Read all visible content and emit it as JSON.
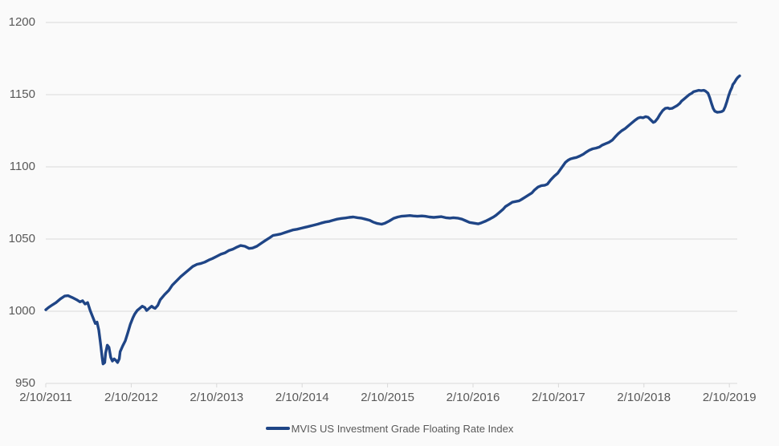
{
  "legend": {
    "label": "MVIS US Investment Grade Floating Rate Index"
  },
  "colors": {
    "line": "#1F4586",
    "grid": "#D9D9D9",
    "axis": "#D9D9D9",
    "text": "#595959",
    "background": "#FAFAFA"
  },
  "chart_data": {
    "type": "line",
    "title": "",
    "xlabel": "",
    "ylabel": "",
    "x_unit": "years since 2/10/2011",
    "x_tick_labels": [
      "2/10/2011",
      "2/10/2012",
      "2/10/2013",
      "2/10/2014",
      "2/10/2015",
      "2/10/2016",
      "2/10/2017",
      "2/10/2018",
      "2/10/2019"
    ],
    "y_ticks": [
      950,
      1000,
      1050,
      1100,
      1150,
      1200
    ],
    "ylim": [
      950,
      1200
    ],
    "xlim": [
      0,
      8.12
    ],
    "grid": true,
    "legend_position": "bottom",
    "series": [
      {
        "name": "MVIS US Investment Grade Floating Rate Index",
        "points": [
          [
            0,
            1001
          ],
          [
            0.03,
            1002.5
          ],
          [
            0.08,
            1004.5
          ],
          [
            0.12,
            1006
          ],
          [
            0.17,
            1008.5
          ],
          [
            0.22,
            1010.5
          ],
          [
            0.26,
            1010.8
          ],
          [
            0.31,
            1009.5
          ],
          [
            0.36,
            1008
          ],
          [
            0.4,
            1006.5
          ],
          [
            0.43,
            1007.3
          ],
          [
            0.46,
            1005
          ],
          [
            0.49,
            1006
          ],
          [
            0.52,
            1000.5
          ],
          [
            0.55,
            996
          ],
          [
            0.58,
            991.5
          ],
          [
            0.6,
            992.5
          ],
          [
            0.62,
            987
          ],
          [
            0.64,
            978
          ],
          [
            0.66,
            968
          ],
          [
            0.67,
            963.5
          ],
          [
            0.69,
            964.5
          ],
          [
            0.7,
            971
          ],
          [
            0.72,
            976.5
          ],
          [
            0.74,
            975
          ],
          [
            0.76,
            968
          ],
          [
            0.78,
            965.5
          ],
          [
            0.8,
            967
          ],
          [
            0.82,
            966
          ],
          [
            0.84,
            964.5
          ],
          [
            0.86,
            967
          ],
          [
            0.87,
            972
          ],
          [
            0.9,
            976
          ],
          [
            0.93,
            979.5
          ],
          [
            0.96,
            985
          ],
          [
            0.99,
            991
          ],
          [
            1.02,
            995.5
          ],
          [
            1.04,
            998
          ],
          [
            1.07,
            1000.5
          ],
          [
            1.1,
            1002
          ],
          [
            1.13,
            1003.5
          ],
          [
            1.16,
            1002.5
          ],
          [
            1.18,
            1000.5
          ],
          [
            1.21,
            1002
          ],
          [
            1.24,
            1003.5
          ],
          [
            1.26,
            1002.5
          ],
          [
            1.28,
            1002
          ],
          [
            1.31,
            1004
          ],
          [
            1.34,
            1008
          ],
          [
            1.39,
            1011.5
          ],
          [
            1.44,
            1014.5
          ],
          [
            1.48,
            1018
          ],
          [
            1.53,
            1021
          ],
          [
            1.58,
            1024
          ],
          [
            1.63,
            1026.5
          ],
          [
            1.67,
            1028.5
          ],
          [
            1.72,
            1031
          ],
          [
            1.77,
            1032.5
          ],
          [
            1.81,
            1033
          ],
          [
            1.86,
            1034
          ],
          [
            1.91,
            1035.5
          ],
          [
            1.95,
            1036.5
          ],
          [
            2,
            1038
          ],
          [
            2.05,
            1039.5
          ],
          [
            2.1,
            1040.5
          ],
          [
            2.14,
            1042
          ],
          [
            2.19,
            1043
          ],
          [
            2.24,
            1044.5
          ],
          [
            2.28,
            1045.5
          ],
          [
            2.33,
            1045
          ],
          [
            2.38,
            1043.5
          ],
          [
            2.42,
            1043.8
          ],
          [
            2.47,
            1045
          ],
          [
            2.52,
            1047
          ],
          [
            2.57,
            1049
          ],
          [
            2.61,
            1050.5
          ],
          [
            2.66,
            1052.5
          ],
          [
            2.71,
            1053
          ],
          [
            2.75,
            1053.5
          ],
          [
            2.8,
            1054.5
          ],
          [
            2.85,
            1055.5
          ],
          [
            2.89,
            1056.3
          ],
          [
            2.94,
            1056.8
          ],
          [
            2.99,
            1057.5
          ],
          [
            3.04,
            1058.2
          ],
          [
            3.08,
            1058.8
          ],
          [
            3.13,
            1059.5
          ],
          [
            3.18,
            1060.3
          ],
          [
            3.22,
            1061
          ],
          [
            3.27,
            1061.8
          ],
          [
            3.32,
            1062.3
          ],
          [
            3.36,
            1063
          ],
          [
            3.41,
            1063.8
          ],
          [
            3.46,
            1064.3
          ],
          [
            3.51,
            1064.6
          ],
          [
            3.55,
            1065
          ],
          [
            3.6,
            1065.3
          ],
          [
            3.65,
            1064.8
          ],
          [
            3.69,
            1064.5
          ],
          [
            3.74,
            1063.8
          ],
          [
            3.79,
            1063
          ],
          [
            3.83,
            1061.8
          ],
          [
            3.88,
            1060.8
          ],
          [
            3.93,
            1060.3
          ],
          [
            3.97,
            1061
          ],
          [
            4.02,
            1062.5
          ],
          [
            4.07,
            1064.3
          ],
          [
            4.12,
            1065.3
          ],
          [
            4.16,
            1065.8
          ],
          [
            4.21,
            1066
          ],
          [
            4.26,
            1066.3
          ],
          [
            4.3,
            1066
          ],
          [
            4.35,
            1065.8
          ],
          [
            4.4,
            1066
          ],
          [
            4.44,
            1065.8
          ],
          [
            4.49,
            1065.3
          ],
          [
            4.54,
            1065
          ],
          [
            4.59,
            1065.3
          ],
          [
            4.63,
            1065.5
          ],
          [
            4.68,
            1064.8
          ],
          [
            4.73,
            1064.5
          ],
          [
            4.77,
            1064.8
          ],
          [
            4.82,
            1064.5
          ],
          [
            4.87,
            1063.8
          ],
          [
            4.91,
            1062.8
          ],
          [
            4.96,
            1061.5
          ],
          [
            5.01,
            1061
          ],
          [
            5.06,
            1060.5
          ],
          [
            5.1,
            1061.3
          ],
          [
            5.15,
            1062.5
          ],
          [
            5.2,
            1064
          ],
          [
            5.24,
            1065.3
          ],
          [
            5.27,
            1066.5
          ],
          [
            5.31,
            1068.5
          ],
          [
            5.35,
            1070.5
          ],
          [
            5.38,
            1072.5
          ],
          [
            5.42,
            1074
          ],
          [
            5.46,
            1075.5
          ],
          [
            5.5,
            1076
          ],
          [
            5.54,
            1076.5
          ],
          [
            5.57,
            1077.5
          ],
          [
            5.61,
            1079
          ],
          [
            5.65,
            1080.5
          ],
          [
            5.69,
            1082
          ],
          [
            5.72,
            1084
          ],
          [
            5.76,
            1086
          ],
          [
            5.8,
            1087
          ],
          [
            5.84,
            1087.3
          ],
          [
            5.87,
            1088
          ],
          [
            5.91,
            1091
          ],
          [
            5.95,
            1093.5
          ],
          [
            5.99,
            1095.5
          ],
          [
            6.02,
            1098
          ],
          [
            6.05,
            1100.5
          ],
          [
            6.08,
            1103
          ],
          [
            6.11,
            1104.5
          ],
          [
            6.14,
            1105.5
          ],
          [
            6.17,
            1106
          ],
          [
            6.21,
            1106.5
          ],
          [
            6.25,
            1107.5
          ],
          [
            6.29,
            1108.8
          ],
          [
            6.32,
            1110
          ],
          [
            6.36,
            1111.5
          ],
          [
            6.4,
            1112.5
          ],
          [
            6.44,
            1113
          ],
          [
            6.48,
            1113.8
          ],
          [
            6.51,
            1115
          ],
          [
            6.55,
            1116
          ],
          [
            6.59,
            1117
          ],
          [
            6.63,
            1118.5
          ],
          [
            6.66,
            1120.5
          ],
          [
            6.7,
            1123
          ],
          [
            6.74,
            1125
          ],
          [
            6.78,
            1126.5
          ],
          [
            6.81,
            1128
          ],
          [
            6.85,
            1130
          ],
          [
            6.89,
            1132
          ],
          [
            6.93,
            1133.8
          ],
          [
            6.96,
            1134.3
          ],
          [
            6.99,
            1134
          ],
          [
            7.02,
            1134.8
          ],
          [
            7.05,
            1134.3
          ],
          [
            7.08,
            1132.5
          ],
          [
            7.11,
            1130.8
          ],
          [
            7.13,
            1131.3
          ],
          [
            7.16,
            1133.5
          ],
          [
            7.19,
            1136.5
          ],
          [
            7.22,
            1139
          ],
          [
            7.25,
            1140.5
          ],
          [
            7.28,
            1140.8
          ],
          [
            7.3,
            1140.3
          ],
          [
            7.33,
            1140.5
          ],
          [
            7.36,
            1141.5
          ],
          [
            7.39,
            1142.5
          ],
          [
            7.42,
            1144
          ],
          [
            7.44,
            1145.5
          ],
          [
            7.47,
            1147
          ],
          [
            7.5,
            1148.5
          ],
          [
            7.53,
            1150
          ],
          [
            7.56,
            1151
          ],
          [
            7.58,
            1152
          ],
          [
            7.61,
            1152.5
          ],
          [
            7.64,
            1153
          ],
          [
            7.67,
            1152.8
          ],
          [
            7.7,
            1153
          ],
          [
            7.72,
            1152.5
          ],
          [
            7.75,
            1151
          ],
          [
            7.77,
            1148
          ],
          [
            7.79,
            1144
          ],
          [
            7.81,
            1140.5
          ],
          [
            7.83,
            1138.5
          ],
          [
            7.86,
            1137.8
          ],
          [
            7.89,
            1138
          ],
          [
            7.91,
            1138.3
          ],
          [
            7.93,
            1139
          ],
          [
            7.95,
            1141.5
          ],
          [
            7.97,
            1145
          ],
          [
            7.99,
            1149
          ],
          [
            8.01,
            1152.5
          ],
          [
            8.03,
            1155
          ],
          [
            8.04,
            1157
          ],
          [
            8.06,
            1158.5
          ],
          [
            8.08,
            1160.5
          ],
          [
            8.1,
            1162
          ],
          [
            8.12,
            1163
          ]
        ]
      }
    ]
  }
}
